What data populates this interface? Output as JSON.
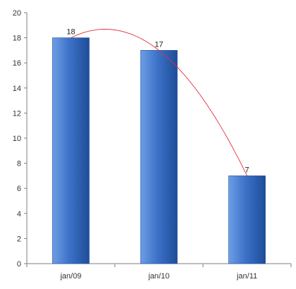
{
  "chart_data": {
    "type": "bar",
    "categories": [
      "jan/09",
      "jan/10",
      "jan/11"
    ],
    "values": [
      18,
      17,
      7
    ],
    "data_labels": [
      "18",
      "17",
      "7"
    ],
    "y_ticks": [
      0,
      2,
      4,
      6,
      8,
      10,
      12,
      14,
      16,
      18,
      20
    ],
    "ylim": [
      0,
      20
    ],
    "grid": false,
    "legend": "none",
    "trendline": true,
    "colors": {
      "bar_light": "#6d9ee6",
      "bar_main": "#3d72c8",
      "bar_dark": "#1e4d99",
      "trendline": "#e03040",
      "axis": "#7f7f7f"
    }
  }
}
